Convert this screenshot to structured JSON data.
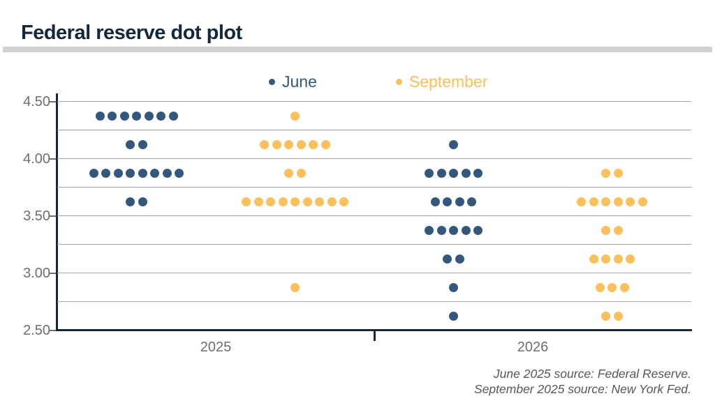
{
  "title": "Federal reserve dot plot",
  "chart_data": {
    "type": "scatter",
    "title": "Federal reserve dot plot",
    "xlabel": "",
    "ylabel": "",
    "ylim": [
      2.5,
      4.5
    ],
    "yticks": [
      4.5,
      4.0,
      3.5,
      3.0,
      2.5
    ],
    "gridline_step": 0.25,
    "grid": true,
    "legend_position": "top",
    "x_categories": [
      "2025",
      "2026"
    ],
    "series": [
      {
        "name": "June",
        "color": "#33587c"
      },
      {
        "name": "September",
        "color": "#fbc05b"
      }
    ],
    "points": [
      {
        "year": "2025",
        "series": "June",
        "rate": 4.375,
        "count": 7
      },
      {
        "year": "2025",
        "series": "June",
        "rate": 4.125,
        "count": 2
      },
      {
        "year": "2025",
        "series": "June",
        "rate": 3.875,
        "count": 8
      },
      {
        "year": "2025",
        "series": "June",
        "rate": 3.625,
        "count": 2
      },
      {
        "year": "2025",
        "series": "September",
        "rate": 4.375,
        "count": 1
      },
      {
        "year": "2025",
        "series": "September",
        "rate": 4.125,
        "count": 6
      },
      {
        "year": "2025",
        "series": "September",
        "rate": 3.875,
        "count": 2
      },
      {
        "year": "2025",
        "series": "September",
        "rate": 3.625,
        "count": 9
      },
      {
        "year": "2025",
        "series": "September",
        "rate": 2.875,
        "count": 1
      },
      {
        "year": "2026",
        "series": "June",
        "rate": 4.125,
        "count": 1
      },
      {
        "year": "2026",
        "series": "June",
        "rate": 3.875,
        "count": 5
      },
      {
        "year": "2026",
        "series": "June",
        "rate": 3.625,
        "count": 4
      },
      {
        "year": "2026",
        "series": "June",
        "rate": 3.375,
        "count": 5
      },
      {
        "year": "2026",
        "series": "June",
        "rate": 3.125,
        "count": 2
      },
      {
        "year": "2026",
        "series": "June",
        "rate": 2.875,
        "count": 1
      },
      {
        "year": "2026",
        "series": "June",
        "rate": 2.625,
        "count": 1
      },
      {
        "year": "2026",
        "series": "September",
        "rate": 3.875,
        "count": 2
      },
      {
        "year": "2026",
        "series": "September",
        "rate": 3.625,
        "count": 6
      },
      {
        "year": "2026",
        "series": "September",
        "rate": 3.375,
        "count": 2
      },
      {
        "year": "2026",
        "series": "September",
        "rate": 3.125,
        "count": 4
      },
      {
        "year": "2026",
        "series": "September",
        "rate": 2.875,
        "count": 3
      },
      {
        "year": "2026",
        "series": "September",
        "rate": 2.625,
        "count": 2
      }
    ],
    "source_lines": [
      "June 2025 source: Federal Reserve.",
      "September 2025 source: New York Fed."
    ]
  },
  "colors": {
    "title": "#13283c",
    "axis": "#1b2734",
    "gridline": "#a5a5a5",
    "tick_label": "#6e6e6e",
    "divider_bar": "#d2d2d2",
    "source_text": "#575757"
  }
}
